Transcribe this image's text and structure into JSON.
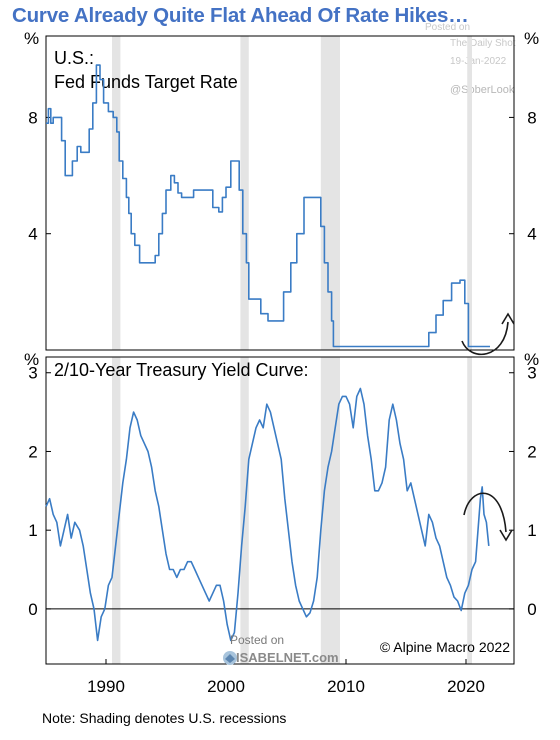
{
  "title": "Curve Already Quite Flat Ahead Of Rate Hikes…",
  "watermark": {
    "posted_on": "Posted on",
    "blog": "The Daily Shot",
    "date": "19-Jan-2022",
    "handle": "@SoberLook",
    "isabel_posted": "Posted on",
    "isabel_site": "ISABELNET.com"
  },
  "footnote": "Note: Shading denotes U.S. recessions",
  "copyright": "© Alpine Macro 2022",
  "colors": {
    "title": "#4472c4",
    "line": "#3a7cc5",
    "recession": "#e4e4e4",
    "arrow": "#1a1a1a"
  },
  "chart_data": [
    {
      "type": "line",
      "title": "U.S.:",
      "subtitle": "Fed Funds Target Rate",
      "ylabel": "%",
      "ylim": [
        0,
        10.8
      ],
      "xlim": [
        1985,
        2024
      ],
      "yticks": [
        4,
        8
      ],
      "recessions": [
        [
          1990.5,
          1991.2
        ],
        [
          2001.2,
          2001.9
        ],
        [
          2007.9,
          2009.5
        ],
        [
          2020.1,
          2020.5
        ]
      ],
      "series": [
        {
          "values": [
            [
              1985.0,
              7.8
            ],
            [
              1985.2,
              8.3
            ],
            [
              1985.4,
              7.8
            ],
            [
              1985.6,
              8.0
            ],
            [
              1985.9,
              8.0
            ],
            [
              1986.3,
              7.2
            ],
            [
              1986.6,
              6.0
            ],
            [
              1986.9,
              6.0
            ],
            [
              1987.2,
              6.5
            ],
            [
              1987.6,
              7.0
            ],
            [
              1987.9,
              6.8
            ],
            [
              1988.2,
              6.8
            ],
            [
              1988.6,
              7.6
            ],
            [
              1988.9,
              8.5
            ],
            [
              1989.2,
              9.8
            ],
            [
              1989.5,
              9.3
            ],
            [
              1989.8,
              8.5
            ],
            [
              1990.2,
              8.2
            ],
            [
              1990.6,
              8.0
            ],
            [
              1990.9,
              7.5
            ],
            [
              1991.1,
              6.5
            ],
            [
              1991.4,
              5.9
            ],
            [
              1991.7,
              5.25
            ],
            [
              1991.9,
              4.7
            ],
            [
              1992.1,
              4.0
            ],
            [
              1992.4,
              3.6
            ],
            [
              1992.8,
              3.0
            ],
            [
              1993.5,
              3.0
            ],
            [
              1993.9,
              3.0
            ],
            [
              1994.1,
              3.25
            ],
            [
              1994.4,
              4.0
            ],
            [
              1994.7,
              4.7
            ],
            [
              1995.0,
              5.5
            ],
            [
              1995.4,
              6.0
            ],
            [
              1995.7,
              5.75
            ],
            [
              1996.0,
              5.4
            ],
            [
              1996.3,
              5.25
            ],
            [
              1997.3,
              5.5
            ],
            [
              1998.7,
              5.5
            ],
            [
              1998.9,
              4.9
            ],
            [
              1999.4,
              4.75
            ],
            [
              1999.7,
              5.25
            ],
            [
              2000.0,
              5.6
            ],
            [
              2000.4,
              6.5
            ],
            [
              2000.9,
              6.5
            ],
            [
              2001.1,
              5.5
            ],
            [
              2001.4,
              4.0
            ],
            [
              2001.7,
              3.0
            ],
            [
              2001.9,
              1.75
            ],
            [
              2002.9,
              1.25
            ],
            [
              2003.5,
              1.0
            ],
            [
              2004.4,
              1.0
            ],
            [
              2004.8,
              2.0
            ],
            [
              2005.4,
              3.0
            ],
            [
              2005.9,
              4.0
            ],
            [
              2006.5,
              5.25
            ],
            [
              2007.6,
              5.25
            ],
            [
              2007.9,
              4.25
            ],
            [
              2008.2,
              3.0
            ],
            [
              2008.5,
              2.0
            ],
            [
              2008.8,
              1.0
            ],
            [
              2008.95,
              0.12
            ],
            [
              2015.9,
              0.12
            ],
            [
              2016.9,
              0.6
            ],
            [
              2017.5,
              1.2
            ],
            [
              2018.1,
              1.7
            ],
            [
              2018.8,
              2.3
            ],
            [
              2019.5,
              2.4
            ],
            [
              2019.9,
              1.6
            ],
            [
              2020.2,
              0.12
            ],
            [
              2022.0,
              0.12
            ]
          ]
        }
      ]
    },
    {
      "type": "line",
      "title": "2/10-Year Treasury Yield Curve:",
      "ylabel": "%",
      "ylim": [
        -0.7,
        3.2
      ],
      "xlim": [
        1985,
        2024
      ],
      "yticks": [
        0,
        1,
        2,
        3
      ],
      "xticks": [
        1990,
        2000,
        2010,
        2020
      ],
      "recessions": [
        [
          1990.5,
          1991.2
        ],
        [
          2001.2,
          2001.9
        ],
        [
          2007.9,
          2009.5
        ],
        [
          2020.1,
          2020.5
        ]
      ],
      "series": [
        {
          "values": [
            [
              1985.0,
              1.3
            ],
            [
              1985.3,
              1.4
            ],
            [
              1985.6,
              1.2
            ],
            [
              1985.9,
              1.1
            ],
            [
              1986.2,
              0.8
            ],
            [
              1986.5,
              1.0
            ],
            [
              1986.8,
              1.2
            ],
            [
              1987.1,
              0.9
            ],
            [
              1987.4,
              1.1
            ],
            [
              1987.8,
              1.0
            ],
            [
              1988.1,
              0.8
            ],
            [
              1988.4,
              0.5
            ],
            [
              1988.7,
              0.2
            ],
            [
              1989.0,
              0.0
            ],
            [
              1989.3,
              -0.4
            ],
            [
              1989.6,
              -0.1
            ],
            [
              1989.9,
              0.0
            ],
            [
              1990.2,
              0.3
            ],
            [
              1990.5,
              0.4
            ],
            [
              1990.8,
              0.8
            ],
            [
              1991.1,
              1.2
            ],
            [
              1991.4,
              1.6
            ],
            [
              1991.7,
              1.9
            ],
            [
              1992.0,
              2.3
            ],
            [
              1992.3,
              2.5
            ],
            [
              1992.6,
              2.4
            ],
            [
              1992.9,
              2.2
            ],
            [
              1993.2,
              2.1
            ],
            [
              1993.5,
              2.0
            ],
            [
              1993.8,
              1.8
            ],
            [
              1994.1,
              1.5
            ],
            [
              1994.4,
              1.3
            ],
            [
              1994.7,
              1.0
            ],
            [
              1995.0,
              0.7
            ],
            [
              1995.3,
              0.5
            ],
            [
              1995.6,
              0.5
            ],
            [
              1995.9,
              0.4
            ],
            [
              1996.2,
              0.5
            ],
            [
              1996.5,
              0.5
            ],
            [
              1996.8,
              0.6
            ],
            [
              1997.1,
              0.6
            ],
            [
              1997.4,
              0.5
            ],
            [
              1997.7,
              0.4
            ],
            [
              1998.0,
              0.3
            ],
            [
              1998.3,
              0.2
            ],
            [
              1998.6,
              0.1
            ],
            [
              1998.9,
              0.2
            ],
            [
              1999.2,
              0.3
            ],
            [
              1999.5,
              0.3
            ],
            [
              1999.8,
              0.1
            ],
            [
              2000.1,
              -0.2
            ],
            [
              2000.4,
              -0.4
            ],
            [
              2000.7,
              -0.3
            ],
            [
              2001.0,
              0.2
            ],
            [
              2001.3,
              0.8
            ],
            [
              2001.6,
              1.3
            ],
            [
              2001.9,
              1.9
            ],
            [
              2002.2,
              2.1
            ],
            [
              2002.5,
              2.3
            ],
            [
              2002.8,
              2.4
            ],
            [
              2003.1,
              2.3
            ],
            [
              2003.4,
              2.6
            ],
            [
              2003.7,
              2.5
            ],
            [
              2004.0,
              2.3
            ],
            [
              2004.3,
              2.1
            ],
            [
              2004.6,
              1.9
            ],
            [
              2004.9,
              1.4
            ],
            [
              2005.2,
              1.0
            ],
            [
              2005.5,
              0.6
            ],
            [
              2005.8,
              0.3
            ],
            [
              2006.1,
              0.1
            ],
            [
              2006.4,
              0.0
            ],
            [
              2006.7,
              -0.1
            ],
            [
              2007.0,
              -0.05
            ],
            [
              2007.3,
              0.1
            ],
            [
              2007.6,
              0.4
            ],
            [
              2007.9,
              1.0
            ],
            [
              2008.2,
              1.5
            ],
            [
              2008.5,
              1.8
            ],
            [
              2008.8,
              2.0
            ],
            [
              2009.1,
              2.3
            ],
            [
              2009.4,
              2.6
            ],
            [
              2009.7,
              2.7
            ],
            [
              2010.0,
              2.7
            ],
            [
              2010.3,
              2.6
            ],
            [
              2010.6,
              2.3
            ],
            [
              2010.9,
              2.7
            ],
            [
              2011.2,
              2.8
            ],
            [
              2011.5,
              2.6
            ],
            [
              2011.8,
              2.2
            ],
            [
              2012.1,
              1.9
            ],
            [
              2012.4,
              1.5
            ],
            [
              2012.7,
              1.5
            ],
            [
              2013.0,
              1.6
            ],
            [
              2013.3,
              1.8
            ],
            [
              2013.6,
              2.4
            ],
            [
              2013.9,
              2.6
            ],
            [
              2014.2,
              2.4
            ],
            [
              2014.5,
              2.1
            ],
            [
              2014.8,
              1.9
            ],
            [
              2015.1,
              1.5
            ],
            [
              2015.4,
              1.6
            ],
            [
              2015.7,
              1.4
            ],
            [
              2016.0,
              1.2
            ],
            [
              2016.3,
              1.0
            ],
            [
              2016.6,
              0.8
            ],
            [
              2016.9,
              1.2
            ],
            [
              2017.2,
              1.1
            ],
            [
              2017.5,
              0.9
            ],
            [
              2017.8,
              0.8
            ],
            [
              2018.1,
              0.6
            ],
            [
              2018.4,
              0.4
            ],
            [
              2018.7,
              0.3
            ],
            [
              2019.0,
              0.15
            ],
            [
              2019.3,
              0.1
            ],
            [
              2019.6,
              -0.02
            ],
            [
              2019.9,
              0.2
            ],
            [
              2020.2,
              0.3
            ],
            [
              2020.5,
              0.5
            ],
            [
              2020.8,
              0.6
            ],
            [
              2021.0,
              1.0
            ],
            [
              2021.2,
              1.4
            ],
            [
              2021.35,
              1.55
            ],
            [
              2021.5,
              1.2
            ],
            [
              2021.7,
              1.1
            ],
            [
              2021.9,
              0.8
            ]
          ]
        }
      ]
    }
  ]
}
